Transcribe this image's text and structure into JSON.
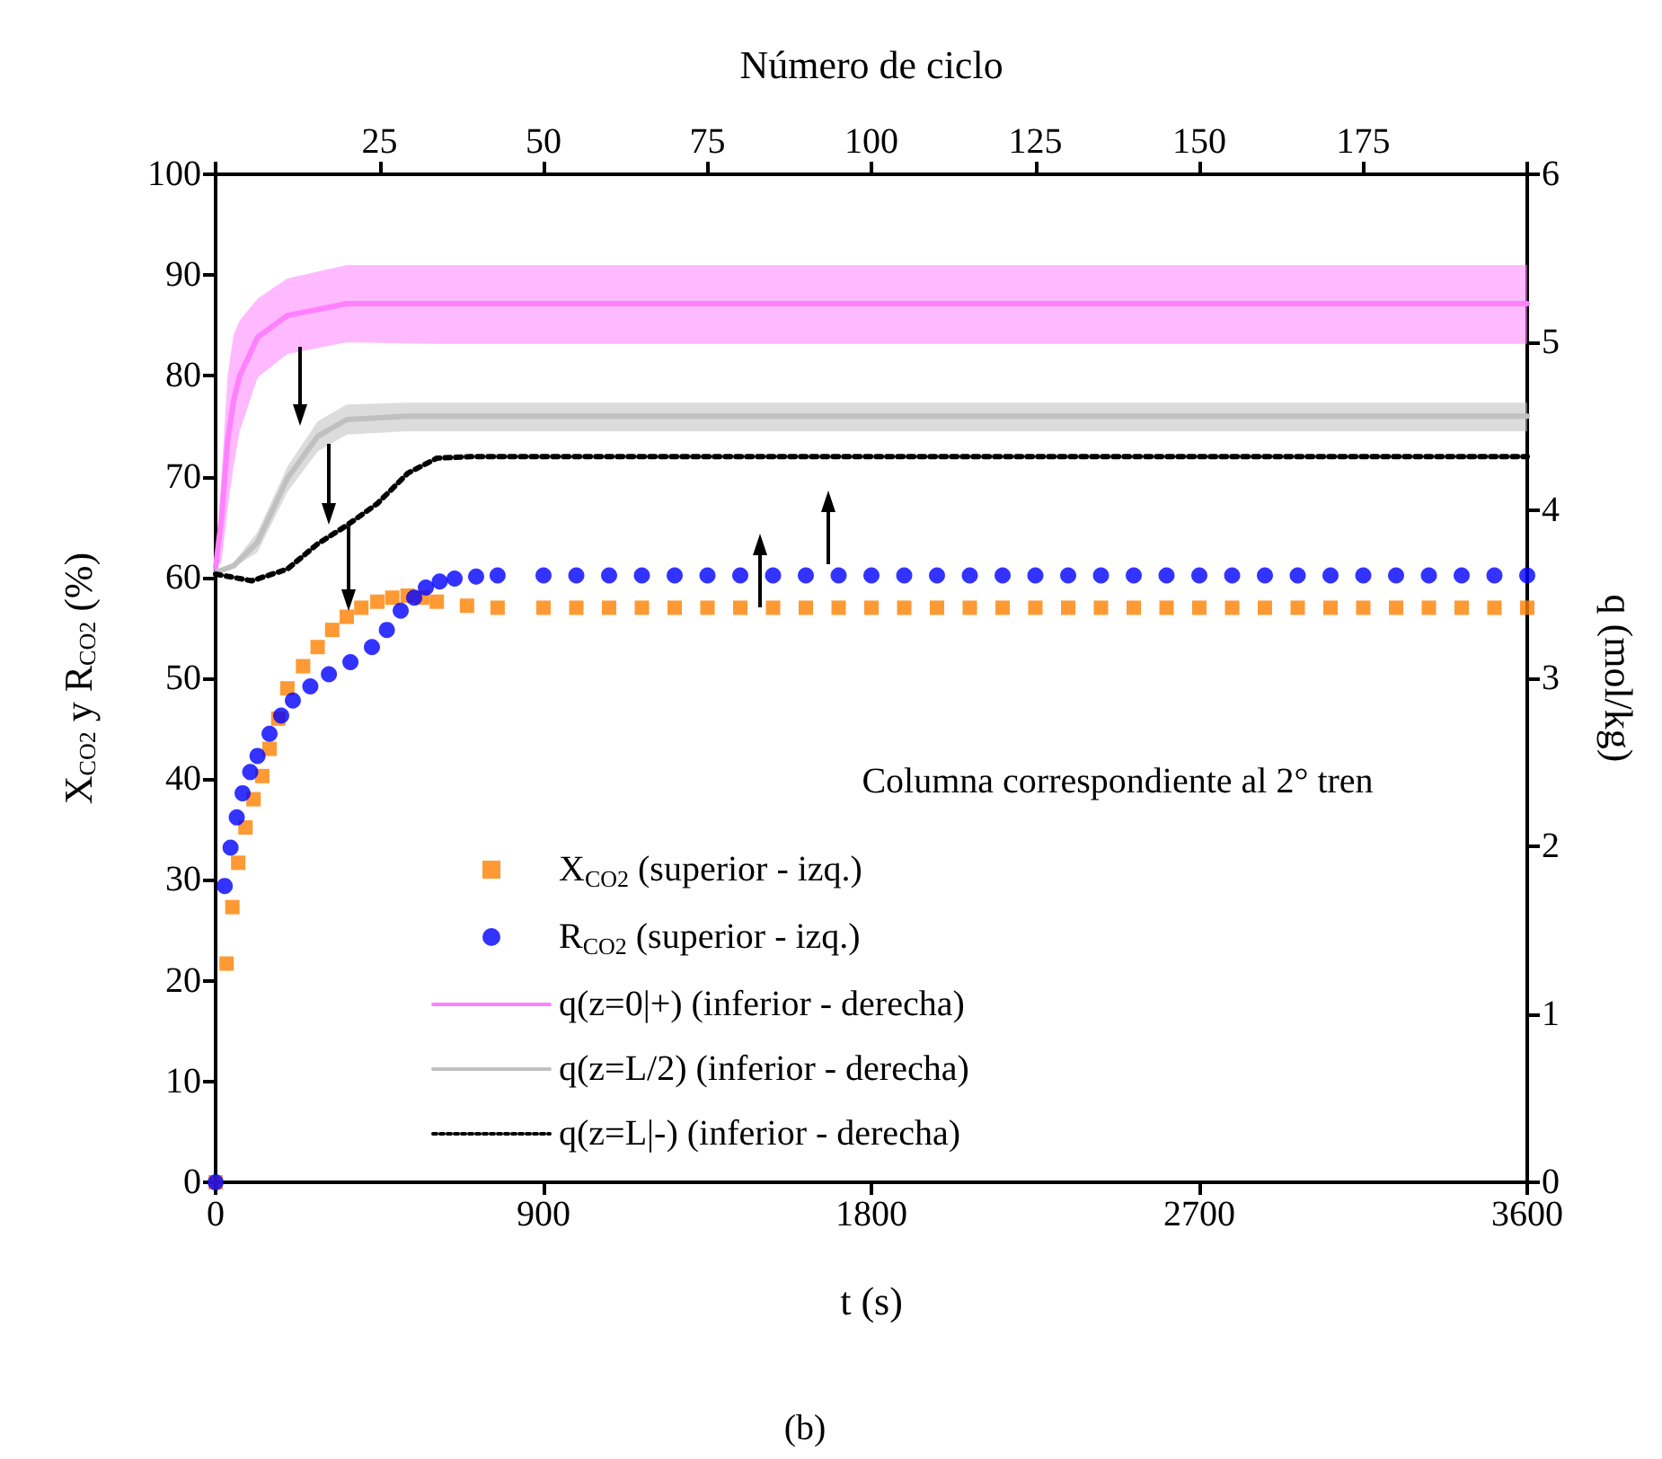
{
  "chart_data": {
    "type": "line",
    "xlabel": "t (s)",
    "x2label": "Número de ciclo",
    "ylabel": "X$_{CO2}$ y R$_{CO2}$ (%)",
    "y2label": "q (mol/kg)",
    "xlim": [
      0,
      3600
    ],
    "xticks": [
      0,
      900,
      1800,
      2700,
      3600
    ],
    "x2lim": [
      0,
      200
    ],
    "x2ticks": [
      {
        "value": 0,
        "label": null
      },
      25,
      50,
      75,
      100,
      125,
      150,
      175,
      {
        "value": 200,
        "label": null
      }
    ],
    "ylim": [
      0,
      100
    ],
    "yticks": [
      0,
      10,
      20,
      30,
      40,
      50,
      60,
      70,
      80,
      90,
      100
    ],
    "y2lim": [
      0,
      6
    ],
    "y2ticks": [
      0,
      1,
      2,
      3,
      4,
      5,
      6
    ],
    "grid": false,
    "legend": "bottom left",
    "annotations": [
      "Columna correspondiente al 2° tren",
      "(b)"
    ],
    "series": [
      {
        "name": "X$_{CO2}$ (superior - izq.)",
        "type": "scatter",
        "marker": "square",
        "color": "#ff8000",
        "x": [
          0,
          30,
          46,
          62,
          82,
          104,
          128,
          148,
          172,
          197,
          240,
          280,
          320,
          360,
          400,
          444,
          485,
          527,
          567,
          607,
          690,
          774,
          900,
          990,
          1080,
          1170,
          1260,
          1350,
          1440,
          1530,
          1620,
          1710,
          1800,
          1890,
          1980,
          2070,
          2160,
          2250,
          2340,
          2430,
          2520,
          2610,
          2700,
          2790,
          2880,
          2970,
          3060,
          3150,
          3240,
          3330,
          3420,
          3510,
          3600
        ],
        "values": [
          0,
          21.7,
          27.3,
          31.7,
          35.2,
          38,
          40.3,
          43,
          46,
          49,
          51.2,
          53.1,
          54.8,
          56.1,
          57,
          57.6,
          58,
          58.2,
          58,
          57.6,
          57.2,
          57,
          57,
          57,
          57,
          57,
          57,
          57,
          57,
          57,
          57,
          57,
          57,
          57,
          57,
          57,
          57,
          57,
          57,
          57,
          57,
          57,
          57,
          57,
          57,
          57,
          57,
          57,
          57,
          57,
          57,
          57,
          57
        ]
      },
      {
        "name": "R$_{CO2}$ (superior - izq.)",
        "type": "scatter",
        "marker": "circle",
        "color": "#0000ff",
        "x": [
          0,
          25,
          41,
          58,
          74,
          95,
          115,
          148,
          180,
          212,
          260,
          311,
          370,
          429,
          470,
          508,
          545,
          577,
          615,
          656,
          715,
          774,
          900,
          990,
          1080,
          1170,
          1260,
          1350,
          1440,
          1530,
          1620,
          1710,
          1800,
          1890,
          1980,
          2070,
          2160,
          2250,
          2340,
          2430,
          2520,
          2610,
          2700,
          2790,
          2880,
          2970,
          3060,
          3150,
          3240,
          3330,
          3420,
          3510,
          3600
        ],
        "values": [
          0,
          29.4,
          33.2,
          36.2,
          38.6,
          40.7,
          42.3,
          44.5,
          46.3,
          47.8,
          49.2,
          50.4,
          51.6,
          53.1,
          54.8,
          56.7,
          58,
          59,
          59.6,
          59.9,
          60.1,
          60.2,
          60.2,
          60.2,
          60.2,
          60.2,
          60.2,
          60.2,
          60.2,
          60.2,
          60.2,
          60.2,
          60.2,
          60.2,
          60.2,
          60.2,
          60.2,
          60.2,
          60.2,
          60.2,
          60.2,
          60.2,
          60.2,
          60.2,
          60.2,
          60.2,
          60.2,
          60.2,
          60.2,
          60.2,
          60.2,
          60.2,
          60.2
        ]
      },
      {
        "name": "q(z=0|+) (inferior - derecha)",
        "axis": "y2",
        "color": "#ff80ff",
        "line_style": "solid",
        "x": [
          0,
          16,
          33,
          49,
          66,
          115,
          197,
          360,
          600,
          1200,
          1800,
          2400,
          3000,
          3600
        ],
        "values": [
          3.66,
          3.95,
          4.41,
          4.65,
          4.8,
          5.03,
          5.16,
          5.23,
          5.23,
          5.23,
          5.23,
          5.23,
          5.23,
          5.23
        ],
        "lower": [
          3.66,
          3.69,
          4.01,
          4.26,
          4.47,
          4.79,
          4.93,
          5.0,
          4.99,
          4.99,
          4.99,
          4.99,
          4.99,
          4.99
        ],
        "upper": [
          3.66,
          4.2,
          4.8,
          5.04,
          5.13,
          5.26,
          5.38,
          5.46,
          5.46,
          5.46,
          5.46,
          5.46,
          5.46,
          5.46
        ]
      },
      {
        "name": "q(z=L/2) (inferior - derecha)",
        "axis": "y2",
        "color": "#c0c0c0",
        "line_style": "solid",
        "x": [
          0,
          50,
          115,
          197,
          280,
          360,
          527,
          1200,
          1800,
          2400,
          3000,
          3600
        ],
        "values": [
          3.63,
          3.67,
          3.81,
          4.19,
          4.44,
          4.54,
          4.56,
          4.56,
          4.56,
          4.56,
          4.56,
          4.56
        ],
        "lower": [
          3.63,
          3.66,
          3.75,
          4.11,
          4.35,
          4.45,
          4.47,
          4.47,
          4.47,
          4.47,
          4.47,
          4.47
        ],
        "upper": [
          3.63,
          3.69,
          3.87,
          4.26,
          4.53,
          4.63,
          4.64,
          4.64,
          4.64,
          4.64,
          4.64,
          4.64
        ]
      },
      {
        "name": "q(z=L|-) (inferior - derecha)",
        "axis": "y2",
        "color": "#000000",
        "line_style": "dotted",
        "x": [
          0,
          50,
          99,
          197,
          280,
          360,
          444,
          527,
          607,
          700,
          1200,
          1800,
          2400,
          3000,
          3600
        ],
        "values": [
          3.62,
          3.6,
          3.58,
          3.65,
          3.8,
          3.91,
          4.04,
          4.22,
          4.31,
          4.32,
          4.32,
          4.32,
          4.32,
          4.32,
          4.32
        ]
      }
    ]
  }
}
